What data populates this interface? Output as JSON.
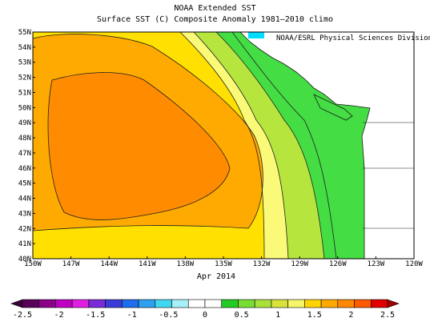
{
  "title": "NOAA Extended SST",
  "subtitle": "Surface SST (C) Composite Anomaly 1981–2010 climo",
  "credit": "NOAA/ESRL Physical Sciences Division",
  "period_label": "Apr 2014",
  "lon_ticks": [
    "150W",
    "147W",
    "144W",
    "141W",
    "138W",
    "135W",
    "132W",
    "129W",
    "126W",
    "123W",
    "120W"
  ],
  "lat_ticks": [
    "55N",
    "54N",
    "53N",
    "52N",
    "51N",
    "50N",
    "49N",
    "48N",
    "47N",
    "46N",
    "45N",
    "44N",
    "43N",
    "42N",
    "41N",
    "40N"
  ],
  "colorbar": {
    "labels": [
      "-2.5",
      "-2",
      "-1.5",
      "-1",
      "-0.5",
      "0",
      "0.5",
      "1",
      "1.5",
      "2",
      "2.5"
    ],
    "colors": [
      "#5a005a",
      "#8a008a",
      "#c000c0",
      "#e020e0",
      "#7a2bd8",
      "#3b3bd8",
      "#1f6ef0",
      "#2ea0f0",
      "#40d8f0",
      "#a8f0f8",
      "#ffffff",
      "#ffffff",
      "#22cc22",
      "#77dd33",
      "#a8e23a",
      "#d8e23a",
      "#f5f56a",
      "#ffd400",
      "#ffa800",
      "#ff8800",
      "#ff5a00",
      "#e00000"
    ],
    "below_color": "#3a003a",
    "above_color": "#a00000"
  },
  "colors": {
    "land": "#ffffff",
    "anomaly_green": "#44dd44",
    "anomaly_yellowgreen": "#b6e63e",
    "anomaly_pale_yellow": "#fafa78",
    "anomaly_yellow": "#ffe000",
    "anomaly_orange": "#ffaa00",
    "anomaly_dark_orange": "#ff8c00",
    "cyan": "#00ddff"
  }
}
